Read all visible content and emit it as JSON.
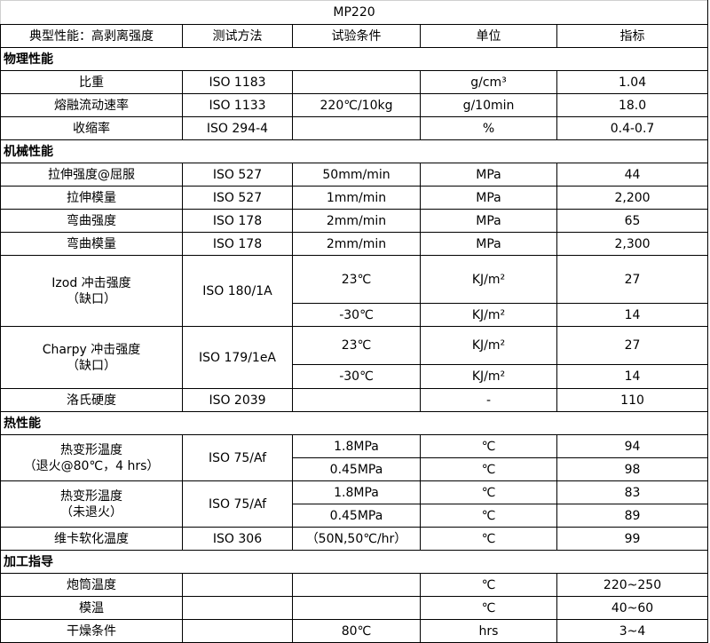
{
  "title": "MP220",
  "headers": [
    "典型性能：高剥离强度",
    "测试方法",
    "试验条件",
    "单位",
    "指标"
  ],
  "sections": [
    {
      "title": "物理性能",
      "rows": [
        {
          "property": [
            "比重"
          ],
          "method": "ISO 1183",
          "sub": [
            {
              "condition": "",
              "unit": "g/cm³",
              "value": "1.04"
            }
          ]
        },
        {
          "property": [
            "熔融流动速率"
          ],
          "method": "ISO 1133",
          "sub": [
            {
              "condition": "220℃/10kg",
              "unit": "g/10min",
              "value": "18.0"
            }
          ]
        },
        {
          "property": [
            "收缩率"
          ],
          "method": "ISO 294-4",
          "sub": [
            {
              "condition": "",
              "unit": "%",
              "value": "0.4-0.7"
            }
          ]
        }
      ]
    },
    {
      "title": "机械性能",
      "rows": [
        {
          "property": [
            "拉伸强度@屈服"
          ],
          "method": "ISO 527",
          "sub": [
            {
              "condition": "50mm/min",
              "unit": "MPa",
              "value": "44"
            }
          ]
        },
        {
          "property": [
            "拉伸模量"
          ],
          "method": "ISO 527",
          "sub": [
            {
              "condition": "1mm/min",
              "unit": "MPa",
              "value": "2,200"
            }
          ]
        },
        {
          "property": [
            "弯曲强度"
          ],
          "method": "ISO 178",
          "sub": [
            {
              "condition": "2mm/min",
              "unit": "MPa",
              "value": "65"
            }
          ]
        },
        {
          "property": [
            "弯曲模量"
          ],
          "method": "ISO 178",
          "sub": [
            {
              "condition": "2mm/min",
              "unit": "MPa",
              "value": "2,300"
            }
          ]
        },
        {
          "property": [
            "Izod 冲击强度",
            "（缺口）"
          ],
          "method": "ISO 180/1A",
          "sub": [
            {
              "condition": "23℃",
              "unit": "KJ/m²",
              "value": "27"
            },
            {
              "condition": "-30℃",
              "unit": "KJ/m²",
              "value": "14"
            }
          ]
        },
        {
          "property": [
            "Charpy 冲击强度",
            "（缺口）"
          ],
          "method": "ISO 179/1eA",
          "sub": [
            {
              "condition": "23℃",
              "unit": "KJ/m²",
              "value": "27"
            },
            {
              "condition": "-30℃",
              "unit": "KJ/m²",
              "value": "14"
            }
          ]
        },
        {
          "property": [
            "洛氏硬度"
          ],
          "method": "ISO 2039",
          "sub": [
            {
              "condition": "",
              "unit": "-",
              "value": "110"
            }
          ]
        }
      ]
    },
    {
      "title": "热性能",
      "rows": [
        {
          "property": [
            "热变形温度",
            "（退火@80℃，4 hrs）"
          ],
          "method": "ISO 75/Af",
          "sub": [
            {
              "condition": "1.8MPa",
              "unit": "℃",
              "value": "94"
            },
            {
              "condition": "0.45MPa",
              "unit": "℃",
              "value": "98"
            }
          ]
        },
        {
          "property": [
            "热变形温度",
            "（未退火）"
          ],
          "method": "ISO 75/Af",
          "sub": [
            {
              "condition": "1.8MPa",
              "unit": "℃",
              "value": "83"
            },
            {
              "condition": "0.45MPa",
              "unit": "℃",
              "value": "89"
            }
          ]
        },
        {
          "property": [
            "维卡软化温度"
          ],
          "method": "ISO 306",
          "sub": [
            {
              "condition": "（50N,50℃/hr）",
              "unit": "℃",
              "value": "99"
            }
          ]
        }
      ]
    },
    {
      "title": "加工指导",
      "rows": [
        {
          "property": [
            "炮筒温度"
          ],
          "method": "",
          "sub": [
            {
              "condition": "",
              "unit": "℃",
              "value": "220~250"
            }
          ]
        },
        {
          "property": [
            "模温"
          ],
          "method": "",
          "sub": [
            {
              "condition": "",
              "unit": "℃",
              "value": "40~60"
            }
          ]
        },
        {
          "property": [
            "干燥条件"
          ],
          "method": "",
          "sub": [
            {
              "condition": "80℃",
              "unit": "hrs",
              "value": "3~4"
            }
          ]
        }
      ]
    }
  ]
}
